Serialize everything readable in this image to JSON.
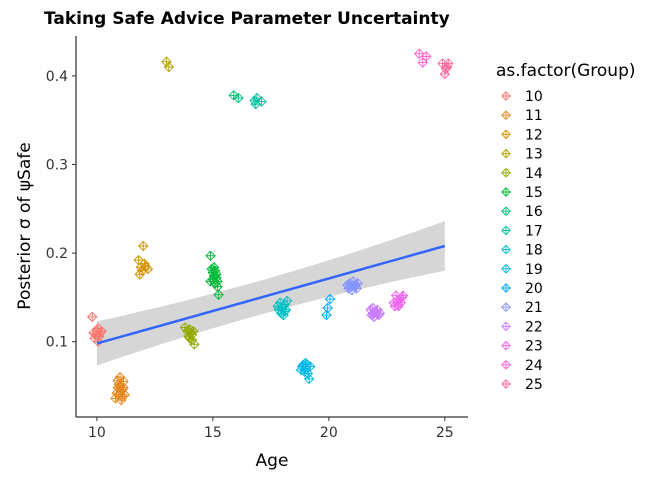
{
  "chart_data": {
    "type": "scatter",
    "title": "Taking Safe Advice Parameter Uncertainty",
    "xlabel": "Age",
    "ylabel": "Posterior σ of ψSafe",
    "xlim": [
      9.1,
      26.0
    ],
    "ylim": [
      0.015,
      0.445
    ],
    "x_ticks": [
      10,
      15,
      20,
      25
    ],
    "y_ticks": [
      0.1,
      0.2,
      0.3,
      0.4
    ],
    "x_tick_labels": [
      "10",
      "15",
      "20",
      "25"
    ],
    "y_tick_labels": [
      "0.1",
      "0.2",
      "0.3",
      "0.4"
    ],
    "marker": "diamond-plus",
    "legend": {
      "title": "as.factor(Group)",
      "position": "right"
    },
    "series": [
      {
        "name": "10",
        "color": "#F8766D",
        "points": [
          [
            9.8,
            0.128
          ],
          [
            9.85,
            0.11
          ],
          [
            9.9,
            0.104
          ],
          [
            9.95,
            0.108
          ],
          [
            10.0,
            0.112
          ],
          [
            10.05,
            0.1
          ],
          [
            10.1,
            0.106
          ],
          [
            10.15,
            0.11
          ],
          [
            10.2,
            0.112
          ],
          [
            10.05,
            0.115
          ]
        ]
      },
      {
        "name": "11",
        "color": "#E7861B",
        "points": [
          [
            10.8,
            0.036
          ],
          [
            10.85,
            0.042
          ],
          [
            10.9,
            0.048
          ],
          [
            10.95,
            0.052
          ],
          [
            11.0,
            0.06
          ],
          [
            11.05,
            0.044
          ],
          [
            11.1,
            0.038
          ],
          [
            11.15,
            0.055
          ],
          [
            11.2,
            0.04
          ],
          [
            11.0,
            0.05
          ],
          [
            10.9,
            0.056
          ],
          [
            11.1,
            0.046
          ],
          [
            11.05,
            0.034
          ],
          [
            11.15,
            0.048
          ],
          [
            10.95,
            0.04
          ]
        ]
      },
      {
        "name": "12",
        "color": "#D39200",
        "points": [
          [
            11.8,
            0.192
          ],
          [
            11.85,
            0.176
          ],
          [
            11.9,
            0.184
          ],
          [
            12.0,
            0.208
          ],
          [
            12.05,
            0.188
          ],
          [
            12.1,
            0.185
          ],
          [
            12.2,
            0.182
          ],
          [
            11.95,
            0.18
          ]
        ]
      },
      {
        "name": "13",
        "color": "#B4A000",
        "points": [
          [
            13.0,
            0.416
          ],
          [
            13.1,
            0.41
          ]
        ]
      },
      {
        "name": "14",
        "color": "#93AA00",
        "points": [
          [
            13.8,
            0.116
          ],
          [
            13.9,
            0.112
          ],
          [
            13.95,
            0.106
          ],
          [
            14.0,
            0.104
          ],
          [
            14.05,
            0.11
          ],
          [
            14.1,
            0.108
          ],
          [
            14.15,
            0.112
          ],
          [
            14.2,
            0.097
          ],
          [
            14.0,
            0.114
          ],
          [
            14.1,
            0.102
          ]
        ]
      },
      {
        "name": "15",
        "color": "#5EB300",
        "points": []
      },
      {
        "name": "15",
        "color": "#00BA38",
        "points": [
          [
            14.9,
            0.197
          ],
          [
            14.95,
            0.182
          ],
          [
            15.0,
            0.178
          ],
          [
            15.0,
            0.17
          ],
          [
            15.05,
            0.174
          ],
          [
            15.1,
            0.18
          ],
          [
            15.1,
            0.166
          ],
          [
            15.15,
            0.172
          ],
          [
            15.2,
            0.168
          ],
          [
            15.25,
            0.153
          ],
          [
            14.9,
            0.168
          ],
          [
            15.05,
            0.184
          ],
          [
            15.15,
            0.176
          ],
          [
            15.2,
            0.162
          ]
        ]
      },
      {
        "name": "16",
        "color": "#00BF74",
        "points": [
          [
            15.9,
            0.378
          ],
          [
            16.1,
            0.375
          ]
        ]
      },
      {
        "name": "17",
        "color": "#00C19F",
        "points": [
          [
            16.8,
            0.372
          ],
          [
            16.85,
            0.368
          ],
          [
            16.9,
            0.375
          ],
          [
            17.1,
            0.371
          ]
        ]
      },
      {
        "name": "18",
        "color": "#00BFC4",
        "points": [
          [
            17.8,
            0.14
          ],
          [
            17.85,
            0.136
          ],
          [
            17.9,
            0.144
          ],
          [
            17.95,
            0.132
          ],
          [
            18.0,
            0.138
          ],
          [
            18.05,
            0.13
          ],
          [
            18.1,
            0.142
          ],
          [
            18.15,
            0.136
          ],
          [
            18.2,
            0.146
          ],
          [
            18.1,
            0.134
          ]
        ]
      },
      {
        "name": "19",
        "color": "#00B8E7",
        "points": [
          [
            18.8,
            0.068
          ],
          [
            18.85,
            0.072
          ],
          [
            18.9,
            0.074
          ],
          [
            18.95,
            0.066
          ],
          [
            19.0,
            0.07
          ],
          [
            19.05,
            0.074
          ],
          [
            19.1,
            0.064
          ],
          [
            19.15,
            0.058
          ],
          [
            19.2,
            0.072
          ],
          [
            19.0,
            0.076
          ]
        ]
      },
      {
        "name": "20",
        "color": "#00A9FF",
        "points": [
          [
            19.9,
            0.13
          ],
          [
            19.95,
            0.138
          ],
          [
            20.05,
            0.148
          ]
        ]
      },
      {
        "name": "21",
        "color": "#8494FF",
        "points": [
          [
            20.8,
            0.164
          ],
          [
            20.85,
            0.16
          ],
          [
            20.9,
            0.166
          ],
          [
            20.95,
            0.162
          ],
          [
            21.0,
            0.158
          ],
          [
            21.05,
            0.168
          ],
          [
            21.1,
            0.162
          ],
          [
            21.15,
            0.164
          ],
          [
            21.2,
            0.16
          ],
          [
            21.25,
            0.166
          ]
        ]
      },
      {
        "name": "22",
        "color": "#C77CFF",
        "points": [
          [
            21.8,
            0.136
          ],
          [
            21.85,
            0.13
          ],
          [
            21.9,
            0.138
          ],
          [
            21.95,
            0.128
          ],
          [
            22.0,
            0.134
          ],
          [
            22.05,
            0.132
          ],
          [
            22.1,
            0.136
          ],
          [
            22.15,
            0.13
          ],
          [
            22.2,
            0.132
          ],
          [
            21.9,
            0.132
          ]
        ]
      },
      {
        "name": "23",
        "color": "#ED68ED",
        "points": [
          [
            22.8,
            0.144
          ],
          [
            22.85,
            0.14
          ],
          [
            22.9,
            0.152
          ],
          [
            22.95,
            0.146
          ],
          [
            23.0,
            0.142
          ],
          [
            23.05,
            0.148
          ],
          [
            23.1,
            0.144
          ],
          [
            23.15,
            0.15
          ],
          [
            23.2,
            0.152
          ],
          [
            23.0,
            0.14
          ]
        ]
      },
      {
        "name": "24",
        "color": "#FF61CC",
        "points": [
          [
            23.9,
            0.425
          ],
          [
            24.05,
            0.415
          ],
          [
            24.2,
            0.422
          ]
        ]
      },
      {
        "name": "25",
        "color": "#FF68A1",
        "points": [
          [
            24.9,
            0.414
          ],
          [
            25.0,
            0.402
          ],
          [
            25.1,
            0.41
          ],
          [
            25.15,
            0.414
          ],
          [
            25.05,
            0.408
          ]
        ]
      }
    ],
    "legend_entries": [
      {
        "name": "10",
        "color": "#F8766D"
      },
      {
        "name": "11",
        "color": "#E7861B"
      },
      {
        "name": "12",
        "color": "#D39200"
      },
      {
        "name": "13",
        "color": "#B4A000"
      },
      {
        "name": "14",
        "color": "#93AA00"
      },
      {
        "name": "15",
        "color": "#00BA38"
      },
      {
        "name": "16",
        "color": "#00BF74"
      },
      {
        "name": "17",
        "color": "#00C19F"
      },
      {
        "name": "18",
        "color": "#00BFC4"
      },
      {
        "name": "19",
        "color": "#00B8E7"
      },
      {
        "name": "20",
        "color": "#00A9FF"
      },
      {
        "name": "21",
        "color": "#8494FF"
      },
      {
        "name": "22",
        "color": "#C77CFF"
      },
      {
        "name": "23",
        "color": "#ED68ED"
      },
      {
        "name": "24",
        "color": "#FF61CC"
      },
      {
        "name": "25",
        "color": "#FF68A1"
      }
    ],
    "fit_line": {
      "method": "linear",
      "color": "#3366FF",
      "ribbon_color": "#999999",
      "x": [
        10,
        25
      ],
      "y": [
        0.098,
        0.208
      ],
      "band_lower": [
        0.073,
        0.18
      ],
      "band_upper": [
        0.123,
        0.236
      ]
    }
  }
}
